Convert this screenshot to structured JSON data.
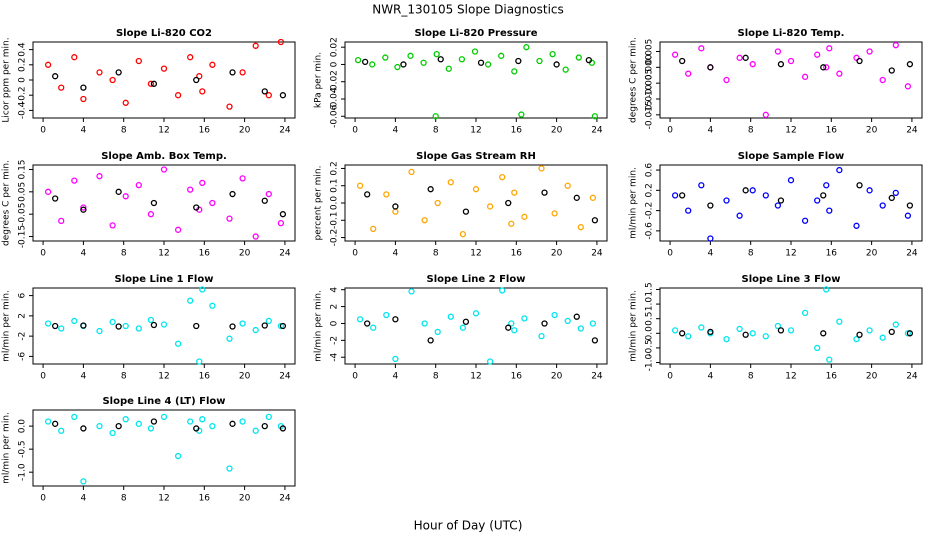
{
  "title": "NWR_130105  Slope Diagnostics",
  "x_label": "Hour of Day (UTC)",
  "chart_data": [
    {
      "type": "scatter",
      "title": "Slope Li-820 CO2",
      "y_label": "Licor ppm per min.",
      "xlim": [
        -1,
        25
      ],
      "xticks": [
        0,
        4,
        8,
        12,
        16,
        20,
        24
      ],
      "ylim": [
        -0.5,
        0.5
      ],
      "yticks": [
        -0.4,
        -0.2,
        0,
        0.2,
        0.4
      ],
      "series": [
        {
          "color": "#ff0000",
          "x": [
            0.5,
            1.8,
            3.1,
            4.0,
            5.6,
            6.9,
            8.2,
            9.5,
            10.7,
            12.0,
            13.4,
            14.6,
            15.5,
            15.8,
            16.8,
            18.5,
            19.8,
            21.1,
            22.4,
            23.6
          ],
          "values": [
            0.2,
            -0.1,
            0.3,
            -0.25,
            0.1,
            0,
            -0.3,
            0.25,
            -0.05,
            0.15,
            -0.2,
            0.3,
            0.05,
            -0.15,
            0.2,
            -0.35,
            0.1,
            0.45,
            -0.2,
            0.5
          ]
        },
        {
          "color": "#000000",
          "x": [
            1.2,
            4.0,
            7.5,
            11.0,
            15.2,
            18.8,
            22.0,
            23.8
          ],
          "values": [
            0.05,
            -0.1,
            0.1,
            -0.05,
            0,
            0.1,
            -0.15,
            -0.2
          ]
        }
      ]
    },
    {
      "type": "scatter",
      "title": "Slope Li-820 Pressure",
      "y_label": "kPa per min.",
      "xlim": [
        -1,
        25
      ],
      "xticks": [
        0,
        4,
        8,
        12,
        16,
        20,
        24
      ],
      "ylim": [
        -0.062,
        0.026
      ],
      "yticks": [
        -0.06,
        -0.04,
        -0.02,
        0,
        0.02
      ],
      "series": [
        {
          "color": "#00cc00",
          "x": [
            0.3,
            1.7,
            3.0,
            4.2,
            5.5,
            6.8,
            8.1,
            9.3,
            10.6,
            11.9,
            13.2,
            14.5,
            15.8,
            17.0,
            18.3,
            19.6,
            20.9,
            22.2,
            23.5,
            8.0,
            16.5,
            23.8
          ],
          "values": [
            0.005,
            0,
            0.008,
            -0.003,
            0.01,
            0.002,
            0.012,
            -0.005,
            0.006,
            0.015,
            0,
            0.01,
            -0.008,
            0.02,
            0.004,
            0.012,
            -0.006,
            0.008,
            0.002,
            -0.06,
            -0.058,
            -0.06
          ]
        },
        {
          "color": "#000000",
          "x": [
            1.0,
            4.8,
            8.5,
            12.5,
            16.2,
            20.0,
            23.2
          ],
          "values": [
            0.003,
            0,
            0.006,
            0.002,
            0.004,
            0,
            0.005
          ]
        }
      ]
    },
    {
      "type": "scatter",
      "title": "Slope Li-820 Temp.",
      "y_label": "degrees C per min.",
      "xlim": [
        -1,
        25
      ],
      "xticks": [
        0,
        4,
        8,
        12,
        16,
        20,
        24
      ],
      "ylim": [
        -0.016,
        0.008
      ],
      "yticks": [
        -0.015,
        {
          "value": -0.01,
          "label": "-0.010"
        },
        -0.005,
        {
          "value": 0,
          "label": "0.000"
        },
        0.005
      ],
      "series": [
        {
          "color": "#ff00ff",
          "x": [
            0.5,
            1.8,
            3.1,
            4.0,
            5.6,
            6.9,
            8.2,
            9.5,
            10.7,
            12.0,
            13.4,
            14.6,
            15.5,
            15.8,
            16.8,
            18.5,
            19.8,
            21.1,
            22.4,
            23.6
          ],
          "values": [
            0.004,
            -0.002,
            0.006,
            0,
            -0.004,
            0.003,
            0.001,
            -0.015,
            0.005,
            0.002,
            -0.003,
            0.004,
            0,
            0.006,
            -0.002,
            0.003,
            0.005,
            -0.004,
            0.007,
            -0.006
          ]
        },
        {
          "color": "#000000",
          "x": [
            1.2,
            4.0,
            7.5,
            11.0,
            15.2,
            18.8,
            22.0,
            23.8
          ],
          "values": [
            0.002,
            0,
            0.003,
            0.001,
            0,
            0.002,
            -0.001,
            0.001
          ]
        }
      ]
    },
    {
      "type": "scatter",
      "title": "Slope Amb. Box Temp.",
      "y_label": "degrees C per min.",
      "xlim": [
        -1,
        25
      ],
      "xticks": [
        0,
        4,
        8,
        12,
        16,
        20,
        24
      ],
      "ylim": [
        -0.17,
        0.17
      ],
      "yticks": [
        -0.15,
        -0.05,
        0.05,
        0.15
      ],
      "series": [
        {
          "color": "#ff00ff",
          "x": [
            0.5,
            1.8,
            3.1,
            4.0,
            5.6,
            6.9,
            8.2,
            9.5,
            10.7,
            12.0,
            13.4,
            14.6,
            15.5,
            15.8,
            16.8,
            18.5,
            19.8,
            21.1,
            22.4,
            23.6
          ],
          "values": [
            0.05,
            -0.08,
            0.1,
            -0.02,
            0.12,
            -0.1,
            0.03,
            0.08,
            -0.05,
            0.15,
            -0.12,
            0.06,
            -0.03,
            0.09,
            0,
            -0.07,
            0.11,
            -0.15,
            0.04,
            -0.09
          ]
        },
        {
          "color": "#000000",
          "x": [
            1.2,
            4.0,
            7.5,
            11.0,
            15.2,
            18.8,
            22.0,
            23.8
          ],
          "values": [
            0.02,
            -0.03,
            0.05,
            0,
            -0.02,
            0.04,
            0.01,
            -0.05
          ]
        }
      ]
    },
    {
      "type": "scatter",
      "title": "Slope Gas Stream RH",
      "y_label": "percent per min.",
      "xlim": [
        -1,
        25
      ],
      "xticks": [
        0,
        4,
        8,
        12,
        16,
        20,
        24
      ],
      "ylim": [
        -0.22,
        0.22
      ],
      "yticks": [
        -0.2,
        -0.1,
        {
          "value": 0,
          "label": "0.0"
        },
        0.1,
        0.2
      ],
      "series": [
        {
          "color": "#ffa500",
          "x": [
            0.5,
            1.8,
            3.1,
            4.0,
            5.6,
            6.9,
            8.2,
            9.5,
            10.7,
            12.0,
            13.4,
            14.6,
            15.5,
            15.8,
            16.8,
            18.5,
            19.8,
            21.1,
            22.4,
            23.6
          ],
          "values": [
            0.1,
            -0.15,
            0.05,
            -0.05,
            0.18,
            -0.1,
            0,
            0.12,
            -0.18,
            0.08,
            -0.02,
            0.15,
            -0.12,
            0.06,
            -0.08,
            0.2,
            -0.06,
            0.1,
            -0.14,
            0.03
          ]
        },
        {
          "color": "#000000",
          "x": [
            1.2,
            4.0,
            7.5,
            11.0,
            15.2,
            18.8,
            22.0,
            23.8
          ],
          "values": [
            0.05,
            -0.02,
            0.08,
            -0.05,
            0,
            0.06,
            0.03,
            -0.1
          ]
        }
      ]
    },
    {
      "type": "scatter",
      "title": "Slope Sample Flow",
      "y_label": "ml/min per min.",
      "xlim": [
        -1,
        25
      ],
      "xticks": [
        0,
        4,
        8,
        12,
        16,
        20,
        24
      ],
      "ylim": [
        -0.8,
        0.7
      ],
      "yticks": [
        -0.6,
        -0.2,
        0.2,
        0.6
      ],
      "series": [
        {
          "color": "#0000ff",
          "x": [
            0.5,
            1.8,
            3.1,
            4.0,
            5.6,
            6.9,
            8.2,
            9.5,
            10.7,
            12.0,
            13.4,
            14.6,
            15.5,
            15.8,
            16.8,
            18.5,
            19.8,
            21.1,
            22.4,
            23.6
          ],
          "values": [
            0.1,
            -0.2,
            0.3,
            -0.75,
            0,
            -0.3,
            0.2,
            0.1,
            -0.1,
            0.4,
            -0.4,
            0,
            0.3,
            -0.2,
            0.6,
            -0.5,
            0.2,
            -0.1,
            0.15,
            -0.3
          ]
        },
        {
          "color": "#000000",
          "x": [
            1.2,
            4.0,
            7.5,
            11.0,
            15.2,
            18.8,
            22.0,
            23.8
          ],
          "values": [
            0.1,
            -0.1,
            0.2,
            0,
            0.1,
            0.3,
            0.05,
            -0.1
          ]
        }
      ]
    },
    {
      "type": "scatter",
      "title": "Slope Line 1 Flow",
      "y_label": "ml/min per min.",
      "xlim": [
        -1,
        25
      ],
      "xticks": [
        0,
        4,
        8,
        12,
        16,
        20,
        24
      ],
      "ylim": [
        -7.5,
        7.5
      ],
      "yticks": [
        -6,
        -2,
        2,
        6
      ],
      "series": [
        {
          "color": "#00e5ee",
          "x": [
            0.5,
            1.8,
            3.1,
            4.0,
            5.6,
            6.9,
            8.2,
            9.5,
            10.7,
            12.0,
            13.4,
            14.6,
            15.5,
            15.8,
            16.8,
            18.5,
            19.8,
            21.1,
            22.4,
            23.6
          ],
          "values": [
            0.5,
            -0.5,
            1,
            0,
            -1,
            0.8,
            0,
            -0.5,
            1.2,
            0.3,
            -3.5,
            5,
            -7,
            7.2,
            4,
            -2.5,
            0.5,
            -0.8,
            1,
            0
          ]
        },
        {
          "color": "#000000",
          "x": [
            1.2,
            4.0,
            7.5,
            11.0,
            15.2,
            18.8,
            22.0,
            23.8
          ],
          "values": [
            0,
            0.1,
            -0.1,
            0.2,
            0,
            -0.1,
            0.1,
            0
          ]
        }
      ]
    },
    {
      "type": "scatter",
      "title": "Slope Line 2 Flow",
      "y_label": "ml/min per min.",
      "xlim": [
        -1,
        25
      ],
      "xticks": [
        0,
        4,
        8,
        12,
        16,
        20,
        24
      ],
      "ylim": [
        -4.8,
        4.2
      ],
      "yticks": [
        -4,
        -2,
        0,
        2,
        4
      ],
      "series": [
        {
          "color": "#00e5ee",
          "x": [
            0.5,
            1.8,
            3.1,
            4.0,
            5.6,
            6.9,
            8.2,
            9.5,
            10.7,
            12.0,
            13.4,
            14.6,
            15.5,
            15.8,
            16.8,
            18.5,
            19.8,
            21.1,
            22.4,
            23.6
          ],
          "values": [
            0.5,
            -0.5,
            1,
            -4.2,
            3.8,
            0,
            -1,
            0.8,
            -0.5,
            1.2,
            -4.5,
            3.9,
            0,
            -0.8,
            0.6,
            -1.5,
            1,
            0.3,
            -0.6,
            0
          ]
        },
        {
          "color": "#000000",
          "x": [
            1.2,
            4.0,
            7.5,
            11.0,
            15.2,
            18.8,
            22.0,
            23.8
          ],
          "values": [
            0,
            0.5,
            -2,
            0.2,
            -0.5,
            0,
            0.8,
            -2
          ]
        }
      ]
    },
    {
      "type": "scatter",
      "title": "Slope Line 3 Flow",
      "y_label": "ml/min per min.",
      "xlim": [
        -1,
        25
      ],
      "xticks": [
        0,
        4,
        8,
        12,
        16,
        20,
        24
      ],
      "ylim": [
        -1.05,
        1.55
      ],
      "yticks": [
        {
          "value": -1,
          "label": "-1.0"
        },
        -0.5,
        {
          "value": 0,
          "label": "0.0"
        },
        0.5,
        {
          "value": 1,
          "label": "1.0"
        },
        1.5
      ],
      "series": [
        {
          "color": "#00e5ee",
          "x": [
            0.5,
            1.8,
            3.1,
            4.0,
            5.6,
            6.9,
            8.2,
            9.5,
            10.7,
            12.0,
            13.4,
            14.6,
            15.5,
            15.8,
            16.8,
            18.5,
            19.8,
            21.1,
            22.4,
            23.6
          ],
          "values": [
            0.1,
            -0.1,
            0.2,
            0,
            -0.2,
            0.15,
            0,
            -0.1,
            0.25,
            0.1,
            0.7,
            -0.5,
            1.5,
            -0.9,
            0.4,
            -0.2,
            0.1,
            -0.15,
            0.3,
            0
          ]
        },
        {
          "color": "#000000",
          "x": [
            1.2,
            4.0,
            7.5,
            11.0,
            15.2,
            18.8,
            22.0,
            23.8
          ],
          "values": [
            0,
            0.05,
            -0.05,
            0.1,
            0,
            -0.05,
            0.05,
            0
          ]
        }
      ]
    },
    {
      "type": "scatter",
      "title": "Slope Line 4 (LT) Flow",
      "y_label": "ml/min per min.",
      "xlim": [
        -1,
        25
      ],
      "xticks": [
        0,
        4,
        8,
        12,
        16,
        20,
        24
      ],
      "ylim": [
        -1.3,
        0.35
      ],
      "yticks": [
        {
          "value": -1,
          "label": "-1.0"
        },
        -0.5,
        {
          "value": 0,
          "label": "0.0"
        }
      ],
      "series": [
        {
          "color": "#00e5ee",
          "x": [
            0.5,
            1.8,
            3.1,
            4.0,
            5.6,
            6.9,
            8.2,
            9.5,
            10.7,
            12.0,
            13.4,
            14.6,
            15.5,
            15.8,
            16.8,
            18.5,
            19.8,
            21.1,
            22.4,
            23.6
          ],
          "values": [
            0.1,
            -0.1,
            0.2,
            -1.2,
            0,
            -0.15,
            0.15,
            0.05,
            -0.05,
            0.2,
            -0.65,
            0.1,
            -0.1,
            0.15,
            0,
            -0.92,
            0.1,
            -0.1,
            0.2,
            0
          ]
        },
        {
          "color": "#000000",
          "x": [
            1.2,
            4.0,
            7.5,
            11.0,
            15.2,
            18.8,
            22.0,
            23.8
          ],
          "values": [
            0.05,
            -0.05,
            0,
            0.1,
            -0.05,
            0.05,
            0,
            -0.05
          ]
        }
      ]
    }
  ]
}
